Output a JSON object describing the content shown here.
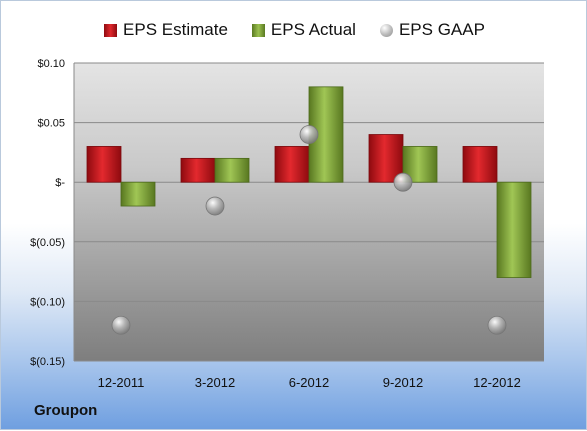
{
  "chart_data": {
    "type": "bar",
    "title": "",
    "xlabel": "",
    "ylabel": "",
    "categories": [
      "12-2011",
      "3-2012",
      "6-2012",
      "9-2012",
      "12-2012"
    ],
    "series": [
      {
        "name": "EPS Estimate",
        "kind": "bar",
        "color": "#c8151b",
        "values": [
          0.03,
          0.02,
          0.03,
          0.04,
          0.03
        ]
      },
      {
        "name": "EPS Actual",
        "kind": "bar",
        "color": "#7fa33a",
        "values": [
          -0.02,
          0.02,
          0.08,
          0.03,
          -0.08
        ]
      },
      {
        "name": "EPS GAAP",
        "kind": "marker",
        "color": "#9a9a9a",
        "values": [
          -0.12,
          -0.02,
          0.04,
          0.0,
          -0.12
        ]
      }
    ],
    "ylim": [
      -0.15,
      0.1
    ],
    "yticks": [
      0.1,
      0.05,
      0,
      -0.05,
      -0.1,
      -0.15
    ],
    "ytick_labels": [
      "$0.10",
      "$0.05",
      "$-",
      "$(0.05)",
      "$(0.10)",
      "$(0.15)"
    ],
    "grid": true,
    "legend_position": "top"
  },
  "footer": {
    "company": "Groupon"
  }
}
